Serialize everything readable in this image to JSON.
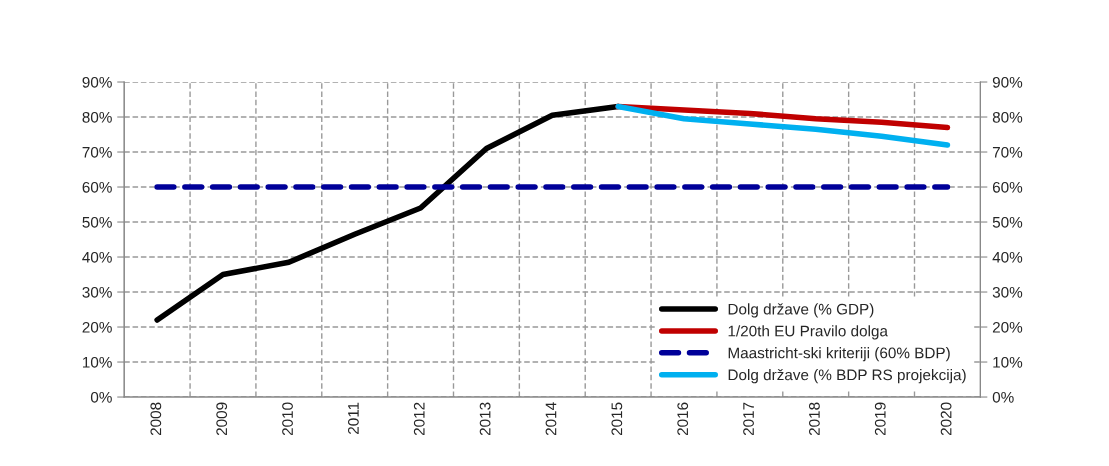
{
  "chart_data": {
    "type": "line",
    "categories": [
      "2008",
      "2009",
      "2010",
      "2011",
      "2012",
      "2013",
      "2014",
      "2015",
      "2016",
      "2017",
      "2018",
      "2019",
      "2020"
    ],
    "series": [
      {
        "name": "Dolg države (% GDP)",
        "color": "#000000",
        "line_style": "solid",
        "values": [
          22,
          35,
          38.5,
          46.5,
          54,
          71,
          80.5,
          83,
          null,
          null,
          null,
          null,
          null
        ]
      },
      {
        "name": "1/20th EU Pravilo dolga",
        "color": "#c00000",
        "line_style": "solid",
        "values": [
          null,
          null,
          null,
          null,
          null,
          null,
          null,
          83,
          82,
          81,
          79.5,
          78.5,
          77
        ]
      },
      {
        "name": "Maastricht-ski kriteriji (60% BDP)",
        "color": "#000099",
        "line_style": "dashed",
        "values": [
          60,
          60,
          60,
          60,
          60,
          60,
          60,
          60,
          60,
          60,
          60,
          60,
          60
        ]
      },
      {
        "name": "Dolg države (% BDP RS projekcija)",
        "color": "#00b0f0",
        "line_style": "solid",
        "values": [
          null,
          null,
          null,
          null,
          null,
          null,
          null,
          83,
          79.5,
          78,
          76.5,
          74.5,
          72
        ]
      }
    ],
    "ylim": [
      0,
      90
    ],
    "yticks": [
      {
        "value": 0,
        "label": "0%"
      },
      {
        "value": 10,
        "label": "10%"
      },
      {
        "value": 20,
        "label": "20%"
      },
      {
        "value": 30,
        "label": "30%"
      },
      {
        "value": 40,
        "label": "40%"
      },
      {
        "value": 50,
        "label": "50%"
      },
      {
        "value": 60,
        "label": "60%"
      },
      {
        "value": 70,
        "label": "70%"
      },
      {
        "value": 80,
        "label": "80%"
      },
      {
        "value": 90,
        "label": "90%"
      }
    ],
    "y2lim": [
      0,
      90
    ],
    "y2ticks": [
      {
        "value": 0,
        "label": "0%"
      },
      {
        "value": 10,
        "label": "10%"
      },
      {
        "value": 20,
        "label": "20%"
      },
      {
        "value": 30,
        "label": "30%"
      },
      {
        "value": 40,
        "label": "40%"
      },
      {
        "value": 50,
        "label": "50%"
      },
      {
        "value": 60,
        "label": "60%"
      },
      {
        "value": 70,
        "label": "70%"
      },
      {
        "value": 80,
        "label": "80%"
      },
      {
        "value": 90,
        "label": "90%"
      }
    ],
    "grid": true,
    "legend": "bottom right",
    "marker": "none"
  }
}
